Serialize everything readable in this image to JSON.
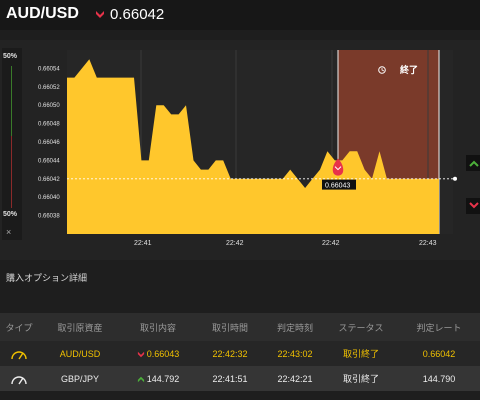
{
  "header": {
    "pair": "AUD/USD",
    "price": "0.66042",
    "direction_icon": "down-arrow-icon"
  },
  "side_panel": {
    "top_label": "50%",
    "bottom_label": "50%",
    "close_symbol": "×"
  },
  "chart_data": {
    "type": "area",
    "x_ticks": [
      "22:41",
      "22:42",
      "22:42",
      "22:43"
    ],
    "y_ticks": [
      "0.66054",
      "0.66052",
      "0.66050",
      "0.66048",
      "0.66046",
      "0.66044",
      "0.66042",
      "0.66040",
      "0.66038"
    ],
    "ylim": [
      0.66036,
      0.66056
    ],
    "values": [
      0.66053,
      0.66053,
      0.66054,
      0.66055,
      0.66053,
      0.66053,
      0.66053,
      0.66053,
      0.66053,
      0.66053,
      0.66044,
      0.66044,
      0.6605,
      0.6605,
      0.66049,
      0.66049,
      0.6605,
      0.66044,
      0.66043,
      0.66043,
      0.66044,
      0.66044,
      0.66042,
      0.66042,
      0.66042,
      0.66042,
      0.66042,
      0.66042,
      0.66042,
      0.66042,
      0.66043,
      0.66042,
      0.66041,
      0.66042,
      0.66043,
      0.66045,
      0.66044,
      0.66044,
      0.66045,
      0.66045,
      0.66043,
      0.66042,
      0.66045,
      0.66042,
      0.66042,
      0.66042,
      0.66042,
      0.66042,
      0.66042,
      0.66042,
      0.66042
    ],
    "entry_marker_label": "0.66043",
    "end_label": "終了",
    "fill_color": "#ffc72c",
    "expiry_zone_color": "#7a3a2a"
  },
  "section_title": "購入オプション詳細",
  "table": {
    "headers": [
      "タイプ",
      "取引原資産",
      "取引内容",
      "取引時間",
      "判定時刻",
      "ステータス",
      "判定レート"
    ],
    "rows": [
      {
        "type_icon": "gauge-icon",
        "asset": "AUD/USD",
        "direction_icon": "down-arrow-icon",
        "content": "0.66043",
        "time": "22:42:32",
        "judge_time": "22:43:02",
        "status": "取引終了",
        "rate": "0.66042",
        "color": "yellow"
      },
      {
        "type_icon": "gauge-icon",
        "asset": "GBP/JPY",
        "direction_icon": "up-arrow-icon",
        "content": "144.792",
        "time": "22:41:51",
        "judge_time": "22:42:21",
        "status": "取引終了",
        "rate": "144.790",
        "color": "white"
      }
    ]
  },
  "colors": {
    "up": "#4caf3a",
    "down": "#e8334a",
    "accent": "#f2c200"
  }
}
